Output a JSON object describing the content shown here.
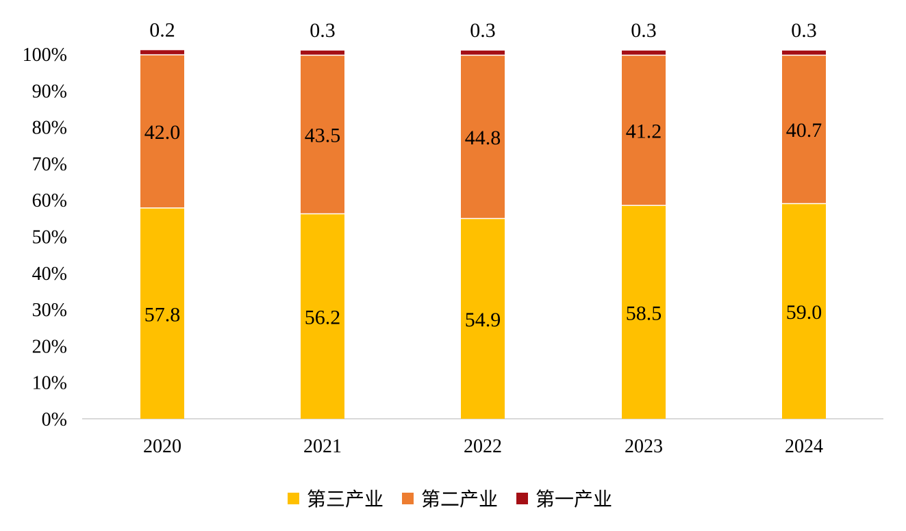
{
  "chart_data": {
    "type": "bar",
    "stacked": true,
    "percent_stacked": true,
    "categories": [
      "2020",
      "2021",
      "2022",
      "2023",
      "2024"
    ],
    "series": [
      {
        "name": "第三产业",
        "color": "#FFC000",
        "values": [
          57.8,
          56.2,
          54.9,
          58.5,
          59.0
        ]
      },
      {
        "name": "第二产业",
        "color": "#ED7D31",
        "values": [
          42.0,
          43.5,
          44.8,
          41.2,
          40.7
        ]
      },
      {
        "name": "第一产业",
        "color": "#A50F15",
        "values": [
          0.2,
          0.3,
          0.3,
          0.3,
          0.3
        ]
      }
    ],
    "ylim": [
      0,
      100
    ],
    "yticks": [
      "0%",
      "10%",
      "20%",
      "30%",
      "40%",
      "50%",
      "60%",
      "70%",
      "80%",
      "90%",
      "100%"
    ],
    "grid": false,
    "legend": "bottom-center",
    "title": "",
    "xlabel": "",
    "ylabel": ""
  }
}
